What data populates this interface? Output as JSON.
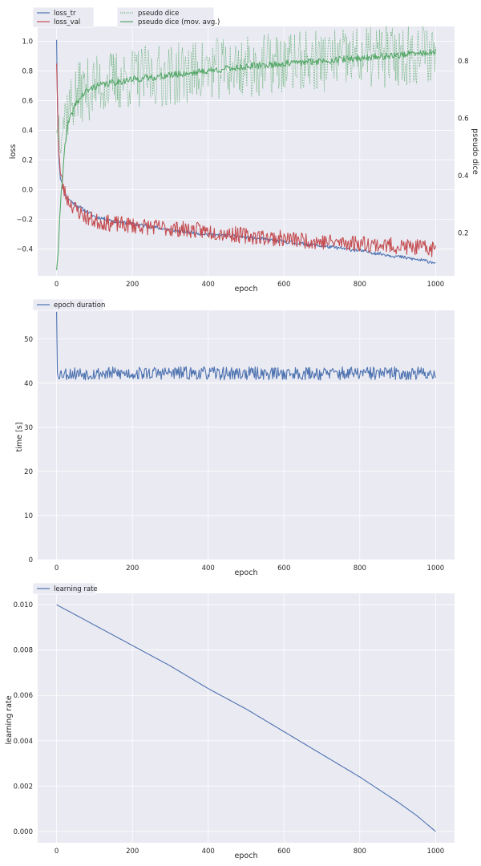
{
  "colors": {
    "loss_tr": "#4c72b0",
    "loss_val": "#c44e52",
    "pseudo_dice": "#55a868",
    "epoch_duration": "#4c72b0",
    "learning_rate": "#4c72b0",
    "panel_bg": "#eaeaf2"
  },
  "chart_data": [
    {
      "type": "line",
      "xlabel": "epoch",
      "ylabel": "loss",
      "y2label": "pseudo dice",
      "xlim": [
        -50,
        1050
      ],
      "ylim": [
        -0.58,
        1.1
      ],
      "y2lim": [
        0.05,
        0.92
      ],
      "xticks": [
        "0",
        "200",
        "400",
        "600",
        "800",
        "1000"
      ],
      "yticks": [
        "−0.4",
        "−0.2",
        "0.0",
        "0.2",
        "0.4",
        "0.6",
        "0.8",
        "1.0"
      ],
      "y2ticks": [
        "0.2",
        "0.4",
        "0.6",
        "0.8"
      ],
      "legend_left": [
        "loss_tr",
        "loss_val"
      ],
      "legend_right": [
        "pseudo dice",
        "pseudo dice (mov. avg.)"
      ],
      "series": [
        {
          "name": "loss_tr",
          "axis": "left",
          "x": [
            0,
            2,
            5,
            10,
            20,
            30,
            50,
            75,
            100,
            150,
            200,
            300,
            400,
            500,
            600,
            700,
            800,
            900,
            1000
          ],
          "y": [
            1.01,
            0.6,
            0.25,
            0.08,
            -0.02,
            -0.06,
            -0.1,
            -0.14,
            -0.18,
            -0.21,
            -0.23,
            -0.27,
            -0.3,
            -0.32,
            -0.35,
            -0.38,
            -0.41,
            -0.45,
            -0.49
          ]
        },
        {
          "name": "loss_val",
          "axis": "left",
          "x": [
            0,
            5,
            10,
            20,
            30,
            50,
            75,
            100,
            150,
            200,
            300,
            400,
            500,
            600,
            700,
            800,
            900,
            1000
          ],
          "y": [
            0.85,
            0.3,
            0.1,
            -0.01,
            -0.07,
            -0.13,
            -0.18,
            -0.21,
            -0.23,
            -0.24,
            -0.26,
            -0.28,
            -0.31,
            -0.33,
            -0.35,
            -0.36,
            -0.38,
            -0.4
          ]
        },
        {
          "name": "pseudo dice",
          "axis": "right",
          "x": [
            0,
            5,
            10,
            20,
            40,
            60,
            100,
            150,
            200,
            300,
            400,
            500,
            600,
            700,
            800,
            900,
            1000
          ],
          "y": [
            0.55,
            0.58,
            0.58,
            0.6,
            0.66,
            0.69,
            0.71,
            0.73,
            0.74,
            0.75,
            0.77,
            0.78,
            0.79,
            0.8,
            0.81,
            0.82,
            0.83
          ]
        },
        {
          "name": "pseudo dice (mov. avg.)",
          "axis": "right",
          "x": [
            0,
            5,
            10,
            20,
            30,
            50,
            75,
            100,
            150,
            200,
            300,
            400,
            500,
            600,
            700,
            800,
            900,
            1000
          ],
          "y": [
            0.07,
            0.15,
            0.3,
            0.48,
            0.58,
            0.65,
            0.69,
            0.71,
            0.725,
            0.735,
            0.75,
            0.765,
            0.78,
            0.79,
            0.8,
            0.81,
            0.82,
            0.83
          ]
        }
      ]
    },
    {
      "type": "line",
      "xlabel": "epoch",
      "ylabel": "time [s]",
      "xlim": [
        -50,
        1050
      ],
      "ylim": [
        0,
        56.5
      ],
      "xticks": [
        "0",
        "200",
        "400",
        "600",
        "800",
        "1000"
      ],
      "yticks": [
        "0",
        "10",
        "20",
        "30",
        "40",
        "50"
      ],
      "legend": [
        "epoch duration"
      ],
      "series": [
        {
          "name": "epoch duration",
          "x": [
            0,
            1,
            2,
            5,
            100,
            200,
            300,
            400,
            500,
            600,
            700,
            800,
            900,
            1000
          ],
          "y": [
            56.2,
            44.0,
            42.3,
            42.2,
            42.2,
            42.2,
            42.3,
            42.2,
            42.2,
            42.2,
            42.2,
            42.2,
            42.2,
            42.2
          ]
        }
      ]
    },
    {
      "type": "line",
      "xlabel": "epoch",
      "ylabel": "learning rate",
      "xlim": [
        -50,
        1050
      ],
      "ylim": [
        -0.0005,
        0.0105
      ],
      "xticks": [
        "0",
        "200",
        "400",
        "600",
        "800",
        "1000"
      ],
      "yticks": [
        "0.000",
        "0.002",
        "0.004",
        "0.006",
        "0.008",
        "0.010"
      ],
      "legend": [
        "learning rate"
      ],
      "series": [
        {
          "name": "learning rate",
          "x": [
            0,
            100,
            200,
            300,
            400,
            500,
            600,
            700,
            800,
            900,
            950,
            1000
          ],
          "y": [
            0.01,
            0.0091,
            0.0082,
            0.0073,
            0.0063,
            0.0054,
            0.0044,
            0.0034,
            0.0024,
            0.0013,
            0.0007,
            0.0
          ]
        }
      ]
    }
  ]
}
